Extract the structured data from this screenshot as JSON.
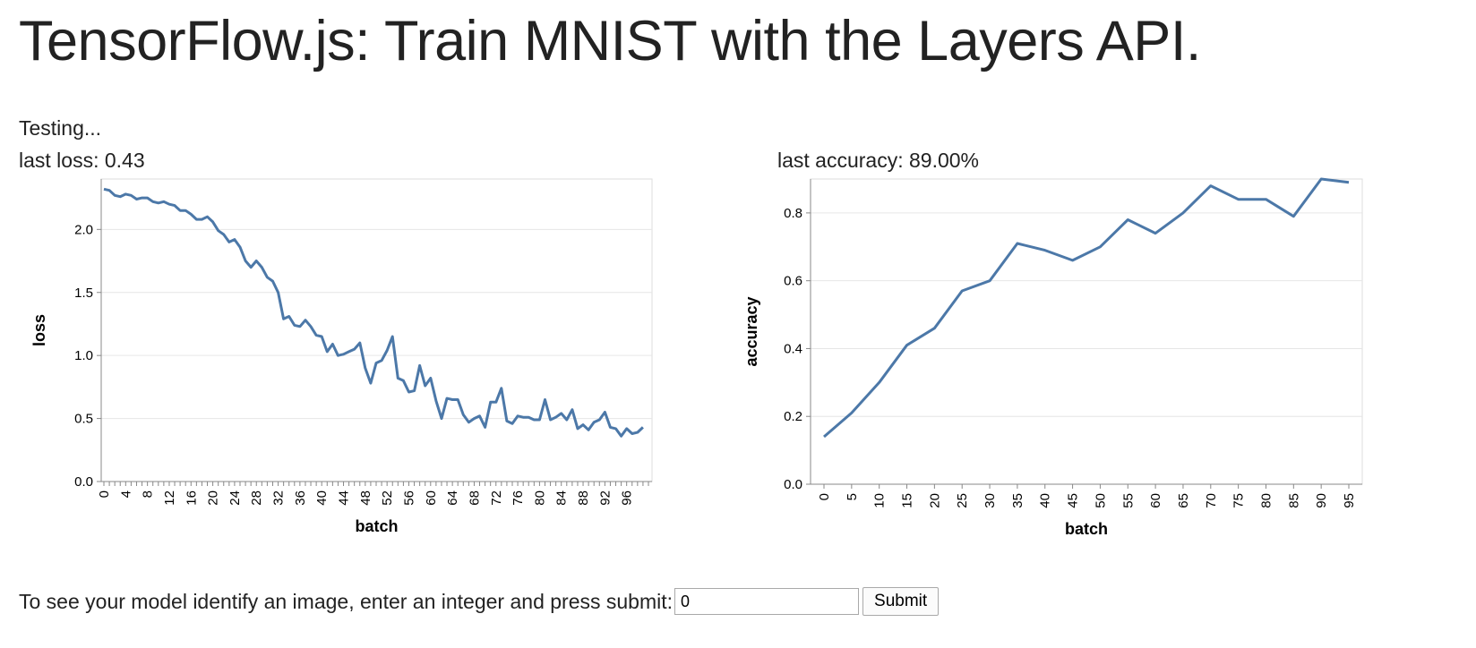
{
  "page": {
    "title": "TensorFlow.js: Train MNIST with the Layers API.",
    "status": "Testing...",
    "last_loss": "last loss: 0.43",
    "last_accuracy": "last accuracy: 89.00%"
  },
  "predict": {
    "prompt": "To see your model identify an image, enter an integer and press submit:",
    "input_value": "0",
    "submit_label": "Submit"
  },
  "colors": {
    "series": "#4c78a8",
    "grid": "#e6e6e6",
    "axis": "#888888"
  },
  "chart_data": [
    {
      "type": "line",
      "name": "loss",
      "xlabel": "batch",
      "ylabel": "loss",
      "xlim": [
        0,
        100
      ],
      "ylim": [
        0,
        2.4
      ],
      "yticks": [
        0.0,
        0.5,
        1.0,
        1.5,
        2.0
      ],
      "ytick_labels": [
        "0.0",
        "0.5",
        "1.0",
        "1.5",
        "2.0"
      ],
      "xtick_labels": [
        "0",
        "4",
        "8",
        "12",
        "16",
        "20",
        "24",
        "28",
        "32",
        "36",
        "40",
        "44",
        "48",
        "52",
        "56",
        "60",
        "64",
        "68",
        "72",
        "76",
        "80",
        "84",
        "88",
        "92",
        "96"
      ],
      "x": [
        0,
        1,
        2,
        3,
        4,
        5,
        6,
        7,
        8,
        9,
        10,
        11,
        12,
        13,
        14,
        15,
        16,
        17,
        18,
        19,
        20,
        21,
        22,
        23,
        24,
        25,
        26,
        27,
        28,
        29,
        30,
        31,
        32,
        33,
        34,
        35,
        36,
        37,
        38,
        39,
        40,
        41,
        42,
        43,
        44,
        45,
        46,
        47,
        48,
        49,
        50,
        51,
        52,
        53,
        54,
        55,
        56,
        57,
        58,
        59,
        60,
        61,
        62,
        63,
        64,
        65,
        66,
        67,
        68,
        69,
        70,
        71,
        72,
        73,
        74,
        75,
        76,
        77,
        78,
        79,
        80,
        81,
        82,
        83,
        84,
        85,
        86,
        87,
        88,
        89,
        90,
        91,
        92,
        93,
        94,
        95,
        96,
        97,
        98,
        99
      ],
      "values": [
        2.32,
        2.31,
        2.27,
        2.26,
        2.28,
        2.27,
        2.24,
        2.25,
        2.25,
        2.22,
        2.21,
        2.22,
        2.2,
        2.19,
        2.15,
        2.15,
        2.12,
        2.08,
        2.08,
        2.1,
        2.06,
        1.99,
        1.96,
        1.9,
        1.92,
        1.86,
        1.75,
        1.7,
        1.75,
        1.7,
        1.62,
        1.59,
        1.5,
        1.29,
        1.31,
        1.24,
        1.23,
        1.28,
        1.23,
        1.16,
        1.15,
        1.03,
        1.09,
        1.0,
        1.01,
        1.03,
        1.05,
        1.1,
        0.9,
        0.78,
        0.94,
        0.96,
        1.04,
        1.15,
        0.82,
        0.8,
        0.71,
        0.72,
        0.92,
        0.76,
        0.82,
        0.64,
        0.5,
        0.66,
        0.65,
        0.65,
        0.53,
        0.47,
        0.5,
        0.52,
        0.43,
        0.63,
        0.63,
        0.74,
        0.48,
        0.46,
        0.52,
        0.51,
        0.51,
        0.49,
        0.49,
        0.65,
        0.49,
        0.51,
        0.54,
        0.49,
        0.57,
        0.42,
        0.45,
        0.41,
        0.47,
        0.49,
        0.55,
        0.43,
        0.42,
        0.36,
        0.42,
        0.38,
        0.39,
        0.43
      ]
    },
    {
      "type": "line",
      "name": "accuracy",
      "xlabel": "batch",
      "ylabel": "accuracy",
      "xlim": [
        0,
        95
      ],
      "ylim": [
        0,
        0.9
      ],
      "yticks": [
        0.0,
        0.2,
        0.4,
        0.6,
        0.8
      ],
      "ytick_labels": [
        "0.0",
        "0.2",
        "0.4",
        "0.6",
        "0.8"
      ],
      "xtick_labels": [
        "0",
        "5",
        "10",
        "15",
        "20",
        "25",
        "30",
        "35",
        "40",
        "45",
        "50",
        "55",
        "60",
        "65",
        "70",
        "75",
        "80",
        "85",
        "90",
        "95"
      ],
      "x": [
        0,
        5,
        10,
        15,
        20,
        25,
        30,
        35,
        40,
        45,
        50,
        55,
        60,
        65,
        70,
        75,
        80,
        85,
        90,
        95
      ],
      "values": [
        0.14,
        0.21,
        0.3,
        0.41,
        0.46,
        0.57,
        0.6,
        0.71,
        0.69,
        0.66,
        0.7,
        0.78,
        0.74,
        0.8,
        0.88,
        0.84,
        0.84,
        0.79,
        0.9,
        0.89
      ]
    }
  ]
}
